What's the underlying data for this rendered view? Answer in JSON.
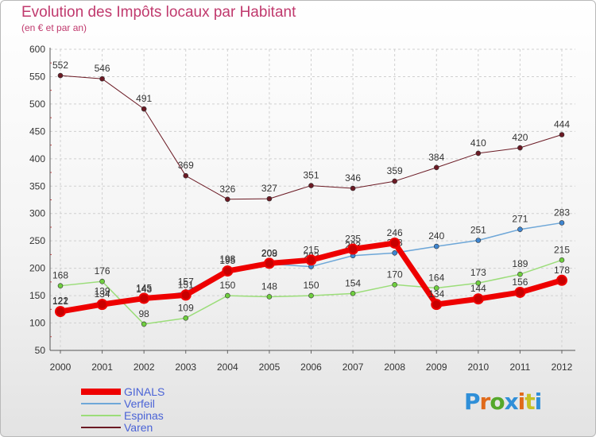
{
  "title": "Evolution des Impôts locaux par Habitant",
  "subtitle": "(en € et par an)",
  "logo": {
    "letters": [
      "P",
      "r",
      "o",
      "x",
      "i",
      "t",
      "i"
    ],
    "colors": [
      "#2f8fd8",
      "#e06a1a",
      "#55a82b",
      "#2f8fd8",
      "#e06a1a",
      "#c5c124",
      "#2f8fd8"
    ]
  },
  "chart_data": {
    "type": "line",
    "title": "Evolution des Impôts locaux par Habitant",
    "subtitle": "(en € et par an)",
    "categories": [
      "2000",
      "2001",
      "2002",
      "2003",
      "2004",
      "2005",
      "2006",
      "2007",
      "2008",
      "2009",
      "2010",
      "2011",
      "2012"
    ],
    "ylim": [
      50,
      600
    ],
    "yticks": [
      50,
      100,
      150,
      200,
      250,
      300,
      350,
      400,
      450,
      500,
      550,
      600
    ],
    "grid": true,
    "legend_position": "bottom-left",
    "series": [
      {
        "name": "Varen",
        "color": "#6b1a24",
        "lineWidth": 1,
        "markerRadius": 3,
        "values": [
          552,
          546,
          491,
          369,
          326,
          327,
          351,
          346,
          359,
          384,
          410,
          420,
          444
        ],
        "labels": [
          "552",
          "546",
          "491",
          "369",
          "326",
          "327",
          "351",
          "346",
          "359",
          "384",
          "410",
          "420",
          "444"
        ]
      },
      {
        "name": "Espinas",
        "color": "#9bdd79",
        "markerFill": "#6fcf3f",
        "lineWidth": 1.5,
        "markerRadius": 3,
        "values": [
          168,
          176,
          98,
          109,
          150,
          148,
          150,
          154,
          170,
          164,
          173,
          189,
          215
        ],
        "labels": [
          "168",
          "176",
          "98",
          "109",
          "150",
          "148",
          "150",
          "154",
          "170",
          "164",
          "173",
          "189",
          "215"
        ]
      },
      {
        "name": "Verfeil",
        "color": "#6ea7d8",
        "markerFill": "#3f86d1",
        "lineWidth": 1.5,
        "markerRadius": 3,
        "values": [
          122,
          139,
          143,
          157,
          198,
          208,
          203,
          223,
          228,
          240,
          251,
          271,
          283
        ],
        "labels": [
          "122",
          "139",
          "143",
          "157",
          "198",
          "208",
          "203",
          "223",
          "228",
          "240",
          "251",
          "271",
          "283"
        ]
      },
      {
        "name": "GINALS",
        "color": "#ee0000",
        "lineWidth": 7,
        "markerRadius": 6,
        "values": [
          121,
          134,
          145,
          151,
          195,
          209,
          215,
          235,
          246,
          134,
          144,
          156,
          178
        ],
        "labels": [
          "121",
          "134",
          "145",
          "151",
          "195",
          "209",
          "215",
          "235",
          "246",
          "134",
          "144",
          "156",
          "178"
        ]
      }
    ],
    "legend": [
      {
        "name": "GINALS",
        "color": "#ee0000",
        "width": 8
      },
      {
        "name": "Verfeil",
        "color": "#6ea7d8",
        "width": 2
      },
      {
        "name": "Espinas",
        "color": "#9bdd79",
        "width": 2
      },
      {
        "name": "Varen",
        "color": "#6b1a24",
        "width": 2
      }
    ],
    "legend_text_color": "#4a63d6"
  }
}
